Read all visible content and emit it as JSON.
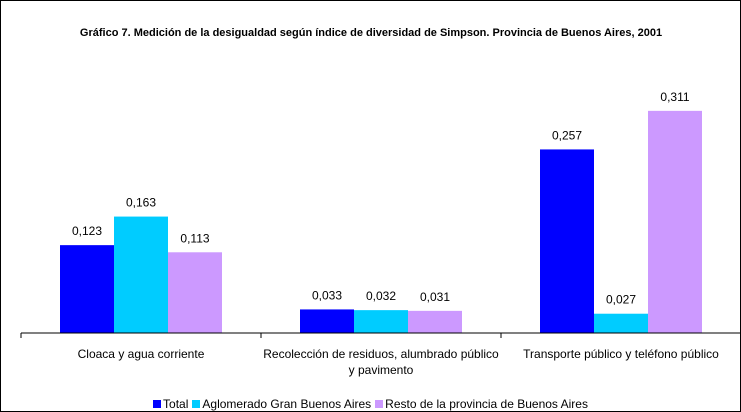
{
  "chart_data": {
    "type": "bar",
    "title": "Gráfico 7. Medición de la desigualdad según índice de diversidad de Simpson.  Provincia de Buenos Aires, 2001",
    "categories": [
      "Cloaca y agua corriente",
      "Recolección de residuos, alumbrado público y pavimento",
      "Transporte público y teléfono público"
    ],
    "series": [
      {
        "name": "Total",
        "color": "#0000ff",
        "values": [
          0.123,
          0.033,
          0.257
        ],
        "value_labels": [
          "0,123",
          "0,033",
          "0,257"
        ]
      },
      {
        "name": "Aglomerado Gran Buenos Aires",
        "color": "#00ccff",
        "values": [
          0.163,
          0.032,
          0.027
        ],
        "value_labels": [
          "0,163",
          "0,032",
          "0,027"
        ]
      },
      {
        "name": "Resto de la provincia de Buenos Aires",
        "color": "#cc99ff",
        "values": [
          0.113,
          0.031,
          0.311
        ],
        "value_labels": [
          "0,113",
          "0,031",
          "0,311"
        ]
      }
    ],
    "ylim": [
      0,
      0.35
    ],
    "legend": "bottom"
  }
}
